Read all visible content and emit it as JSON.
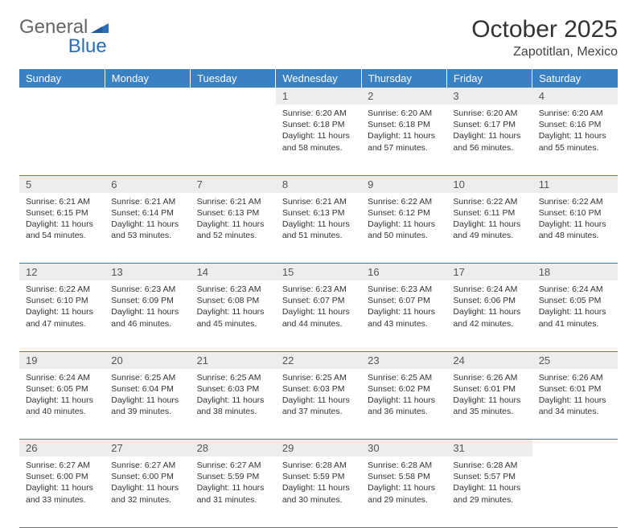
{
  "brand": {
    "part1": "General",
    "part2": "Blue"
  },
  "title": "October 2025",
  "location": "Zapotitlan, Mexico",
  "colors": {
    "header_bg": "#3a81c4",
    "header_text": "#ffffff",
    "daynum_bg": "#ededed",
    "border": "#3a81c4",
    "logo_accent": "#2a6db8"
  },
  "dayHeaders": [
    "Sunday",
    "Monday",
    "Tuesday",
    "Wednesday",
    "Thursday",
    "Friday",
    "Saturday"
  ],
  "weeks": [
    [
      null,
      null,
      null,
      {
        "n": "1",
        "sunrise": "6:20 AM",
        "sunset": "6:18 PM",
        "daylight": "11 hours and 58 minutes."
      },
      {
        "n": "2",
        "sunrise": "6:20 AM",
        "sunset": "6:18 PM",
        "daylight": "11 hours and 57 minutes."
      },
      {
        "n": "3",
        "sunrise": "6:20 AM",
        "sunset": "6:17 PM",
        "daylight": "11 hours and 56 minutes."
      },
      {
        "n": "4",
        "sunrise": "6:20 AM",
        "sunset": "6:16 PM",
        "daylight": "11 hours and 55 minutes."
      }
    ],
    [
      {
        "n": "5",
        "sunrise": "6:21 AM",
        "sunset": "6:15 PM",
        "daylight": "11 hours and 54 minutes."
      },
      {
        "n": "6",
        "sunrise": "6:21 AM",
        "sunset": "6:14 PM",
        "daylight": "11 hours and 53 minutes."
      },
      {
        "n": "7",
        "sunrise": "6:21 AM",
        "sunset": "6:13 PM",
        "daylight": "11 hours and 52 minutes."
      },
      {
        "n": "8",
        "sunrise": "6:21 AM",
        "sunset": "6:13 PM",
        "daylight": "11 hours and 51 minutes."
      },
      {
        "n": "9",
        "sunrise": "6:22 AM",
        "sunset": "6:12 PM",
        "daylight": "11 hours and 50 minutes."
      },
      {
        "n": "10",
        "sunrise": "6:22 AM",
        "sunset": "6:11 PM",
        "daylight": "11 hours and 49 minutes."
      },
      {
        "n": "11",
        "sunrise": "6:22 AM",
        "sunset": "6:10 PM",
        "daylight": "11 hours and 48 minutes."
      }
    ],
    [
      {
        "n": "12",
        "sunrise": "6:22 AM",
        "sunset": "6:10 PM",
        "daylight": "11 hours and 47 minutes."
      },
      {
        "n": "13",
        "sunrise": "6:23 AM",
        "sunset": "6:09 PM",
        "daylight": "11 hours and 46 minutes."
      },
      {
        "n": "14",
        "sunrise": "6:23 AM",
        "sunset": "6:08 PM",
        "daylight": "11 hours and 45 minutes."
      },
      {
        "n": "15",
        "sunrise": "6:23 AM",
        "sunset": "6:07 PM",
        "daylight": "11 hours and 44 minutes."
      },
      {
        "n": "16",
        "sunrise": "6:23 AM",
        "sunset": "6:07 PM",
        "daylight": "11 hours and 43 minutes."
      },
      {
        "n": "17",
        "sunrise": "6:24 AM",
        "sunset": "6:06 PM",
        "daylight": "11 hours and 42 minutes."
      },
      {
        "n": "18",
        "sunrise": "6:24 AM",
        "sunset": "6:05 PM",
        "daylight": "11 hours and 41 minutes."
      }
    ],
    [
      {
        "n": "19",
        "sunrise": "6:24 AM",
        "sunset": "6:05 PM",
        "daylight": "11 hours and 40 minutes."
      },
      {
        "n": "20",
        "sunrise": "6:25 AM",
        "sunset": "6:04 PM",
        "daylight": "11 hours and 39 minutes."
      },
      {
        "n": "21",
        "sunrise": "6:25 AM",
        "sunset": "6:03 PM",
        "daylight": "11 hours and 38 minutes."
      },
      {
        "n": "22",
        "sunrise": "6:25 AM",
        "sunset": "6:03 PM",
        "daylight": "11 hours and 37 minutes."
      },
      {
        "n": "23",
        "sunrise": "6:25 AM",
        "sunset": "6:02 PM",
        "daylight": "11 hours and 36 minutes."
      },
      {
        "n": "24",
        "sunrise": "6:26 AM",
        "sunset": "6:01 PM",
        "daylight": "11 hours and 35 minutes."
      },
      {
        "n": "25",
        "sunrise": "6:26 AM",
        "sunset": "6:01 PM",
        "daylight": "11 hours and 34 minutes."
      }
    ],
    [
      {
        "n": "26",
        "sunrise": "6:27 AM",
        "sunset": "6:00 PM",
        "daylight": "11 hours and 33 minutes."
      },
      {
        "n": "27",
        "sunrise": "6:27 AM",
        "sunset": "6:00 PM",
        "daylight": "11 hours and 32 minutes."
      },
      {
        "n": "28",
        "sunrise": "6:27 AM",
        "sunset": "5:59 PM",
        "daylight": "11 hours and 31 minutes."
      },
      {
        "n": "29",
        "sunrise": "6:28 AM",
        "sunset": "5:59 PM",
        "daylight": "11 hours and 30 minutes."
      },
      {
        "n": "30",
        "sunrise": "6:28 AM",
        "sunset": "5:58 PM",
        "daylight": "11 hours and 29 minutes."
      },
      {
        "n": "31",
        "sunrise": "6:28 AM",
        "sunset": "5:57 PM",
        "daylight": "11 hours and 29 minutes."
      },
      null
    ]
  ],
  "labels": {
    "sunrise": "Sunrise:",
    "sunset": "Sunset:",
    "daylight": "Daylight:"
  }
}
